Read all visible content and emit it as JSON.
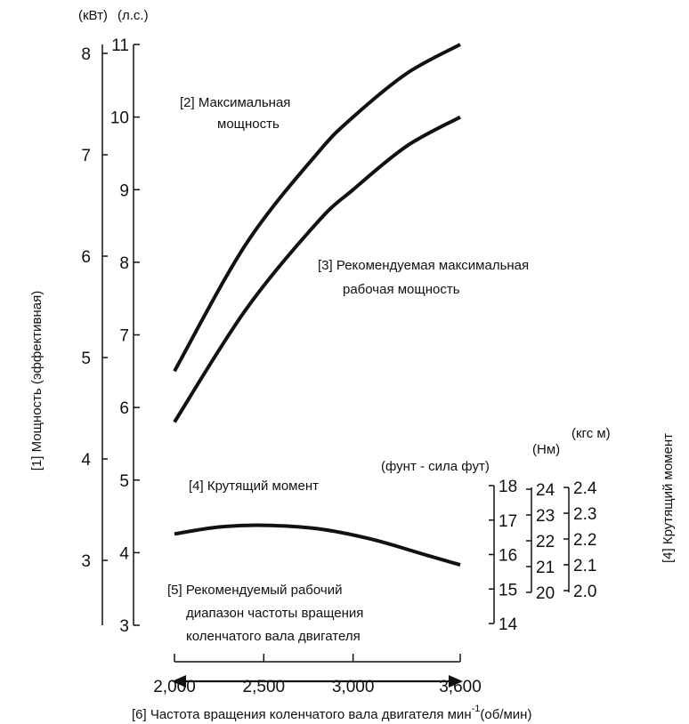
{
  "chart_data": {
    "type": "line",
    "x_axis": {
      "label": "[6] Частота вращения коленчатого вала двигателя мин",
      "label_sup": "-1",
      "label_unit": "(об/мин)",
      "ticks": [
        2000,
        2500,
        3000,
        3600
      ],
      "tick_labels": [
        "2,000",
        "2,500",
        "3,000",
        "3,600"
      ],
      "range": [
        2000,
        3600
      ]
    },
    "power_axis": {
      "label": "[1] Мощность (эффективная)",
      "kw_unit": "(кВт)",
      "hp_unit": "(л.с.)",
      "kw_ticks": [
        3,
        4,
        5,
        6,
        7,
        8
      ],
      "hp_ticks": [
        3,
        4,
        5,
        6,
        7,
        8,
        9,
        10,
        11
      ]
    },
    "torque_axis": {
      "label": "[4] Крутящий момент",
      "lbfft_unit": "(фунт - сила фут)",
      "nm_unit": "(Нм)",
      "kgfm_unit": "(кгс м)",
      "lbfft_ticks": [
        "18",
        "17",
        "16",
        "15",
        "14"
      ],
      "nm_ticks": [
        "24",
        "23",
        "22",
        "21",
        "20"
      ],
      "kgfm_ticks": [
        "2.4",
        "2.3",
        "2.2",
        "2.1",
        "2.0"
      ]
    },
    "series": [
      {
        "name": "[2] Максимальная мощность",
        "unit": "л.с.",
        "x": [
          2000,
          2400,
          2800,
          3000,
          3300,
          3600
        ],
        "y": [
          6.5,
          8.25,
          9.5,
          10.0,
          10.6,
          11.0
        ]
      },
      {
        "name": "[3] Рекомендуемая максимальная рабочая мощность",
        "unit": "л.с.",
        "x": [
          2000,
          2400,
          2800,
          3000,
          3300,
          3600
        ],
        "y": [
          5.8,
          7.35,
          8.55,
          9.0,
          9.6,
          10.0
        ]
      },
      {
        "name": "[4] Крутящий момент",
        "unit": "фунт - сила фут",
        "x": [
          2000,
          2250,
          2500,
          2800,
          3100,
          3400,
          3600
        ],
        "y": [
          16.6,
          16.8,
          16.85,
          16.75,
          16.45,
          16.0,
          15.7
        ]
      }
    ],
    "annotations": {
      "max_power_line1": "[2] Максимальная",
      "max_power_line2": "мощность",
      "rec_power_line1": "[3] Рекомендуемая максимальная",
      "rec_power_line2": "рабочая мощность",
      "torque_label": "[4] Крутящий момент",
      "range_line1": "[5] Рекомендуемый рабочий",
      "range_line2": "диапазон частоты вращения",
      "range_line3": "коленчатого вала двигателя",
      "range": [
        2000,
        3600
      ]
    },
    "grid": false,
    "legend": "none"
  }
}
